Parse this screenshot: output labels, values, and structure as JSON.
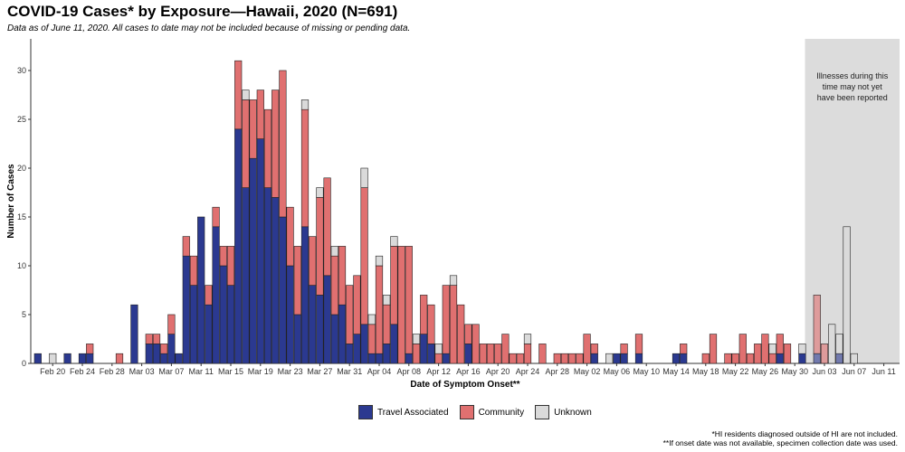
{
  "title": "COVID-19 Cases* by Exposure—Hawaii, 2020 (N=691)",
  "subtitle": "Data as of June 11, 2020. All cases to date may not be included because of missing or pending data.",
  "footnotes": [
    "*HI residents diagnosed outside of HI are not included.",
    "**If onset date was not available, specimen collection date was used."
  ],
  "chart_data": {
    "type": "bar",
    "stacked": true,
    "xlabel": "Date of Symptom Onset**",
    "ylabel": "Number of Cases",
    "ylim": [
      0,
      33
    ],
    "yticks": [
      0,
      5,
      10,
      15,
      20,
      25,
      30
    ],
    "x_start": "Feb 18",
    "x_tick_labels": [
      "Feb 20",
      "Feb 24",
      "Feb 28",
      "Mar 03",
      "Mar 07",
      "Mar 11",
      "Mar 15",
      "Mar 19",
      "Mar 23",
      "Mar 27",
      "Mar 31",
      "Apr 04",
      "Apr 08",
      "Apr 12",
      "Apr 16",
      "Apr 20",
      "Apr 24",
      "Apr 28",
      "May 02",
      "May 06",
      "May 10",
      "May 14",
      "May 18",
      "May 22",
      "May 26",
      "May 30",
      "Jun 03",
      "Jun 07",
      "Jun 11"
    ],
    "shaded_region": {
      "from": "Jun 01",
      "to": "Jun 12",
      "label": [
        "Illnesses during this",
        "time may not yet",
        "have been reported"
      ]
    },
    "legend_position": "bottom",
    "series": [
      {
        "name": "Travel Associated",
        "color": "#2B3990",
        "values": [
          1,
          0,
          0,
          0,
          1,
          0,
          1,
          1,
          0,
          0,
          0,
          0,
          0,
          6,
          0,
          2,
          2,
          1,
          3,
          1,
          11,
          8,
          15,
          6,
          14,
          10,
          8,
          24,
          18,
          21,
          23,
          18,
          17,
          15,
          10,
          5,
          14,
          8,
          7,
          9,
          5,
          6,
          2,
          3,
          4,
          1,
          1,
          2,
          4,
          0,
          1,
          0,
          3,
          2,
          0,
          1,
          0,
          0,
          2,
          0,
          0,
          0,
          0,
          0,
          0,
          0,
          0,
          0,
          0,
          0,
          0,
          0,
          0,
          0,
          0,
          1,
          0,
          0,
          1,
          1,
          0,
          1,
          0,
          0,
          0,
          0,
          1,
          1,
          0,
          0,
          0,
          0,
          0,
          0,
          0,
          0,
          0,
          0,
          0,
          0,
          1,
          0,
          0,
          1,
          0,
          1,
          0,
          0,
          1,
          0,
          0,
          0,
          0,
          0,
          0,
          0,
          0
        ]
      },
      {
        "name": "Community",
        "color": "#E07070",
        "values": [
          0,
          0,
          0,
          0,
          0,
          0,
          0,
          1,
          0,
          0,
          0,
          1,
          0,
          0,
          0,
          1,
          1,
          1,
          2,
          0,
          2,
          3,
          0,
          2,
          2,
          2,
          4,
          7,
          9,
          6,
          5,
          8,
          11,
          15,
          6,
          7,
          12,
          5,
          10,
          10,
          6,
          6,
          6,
          6,
          14,
          3,
          9,
          4,
          8,
          12,
          11,
          2,
          4,
          4,
          1,
          7,
          8,
          6,
          2,
          4,
          2,
          2,
          2,
          3,
          1,
          1,
          2,
          0,
          2,
          0,
          1,
          1,
          1,
          1,
          3,
          1,
          0,
          0,
          0,
          1,
          0,
          2,
          0,
          0,
          0,
          0,
          0,
          1,
          0,
          0,
          1,
          3,
          0,
          1,
          1,
          3,
          1,
          2,
          3,
          1,
          2,
          2,
          0,
          0,
          0,
          6,
          2,
          0,
          0,
          0,
          0,
          0,
          0,
          0,
          0,
          0,
          0
        ]
      },
      {
        "name": "Unknown",
        "color": "#DADADA",
        "values": [
          0,
          0,
          1,
          0,
          0,
          0,
          0,
          0,
          0,
          0,
          0,
          0,
          0,
          0,
          0,
          0,
          0,
          0,
          0,
          0,
          0,
          0,
          0,
          0,
          0,
          0,
          0,
          0,
          1,
          0,
          0,
          0,
          0,
          0,
          0,
          0,
          1,
          0,
          1,
          0,
          1,
          0,
          0,
          0,
          2,
          1,
          1,
          1,
          1,
          0,
          0,
          1,
          0,
          0,
          1,
          0,
          1,
          0,
          0,
          0,
          0,
          0,
          0,
          0,
          0,
          0,
          1,
          0,
          0,
          0,
          0,
          0,
          0,
          0,
          0,
          0,
          0,
          1,
          0,
          0,
          0,
          0,
          0,
          0,
          0,
          0,
          0,
          0,
          0,
          0,
          0,
          0,
          0,
          0,
          0,
          0,
          0,
          0,
          0,
          1,
          0,
          0,
          0,
          1,
          0,
          0,
          0,
          4,
          2,
          14,
          1,
          0,
          0,
          0,
          0,
          0,
          0
        ]
      }
    ]
  }
}
